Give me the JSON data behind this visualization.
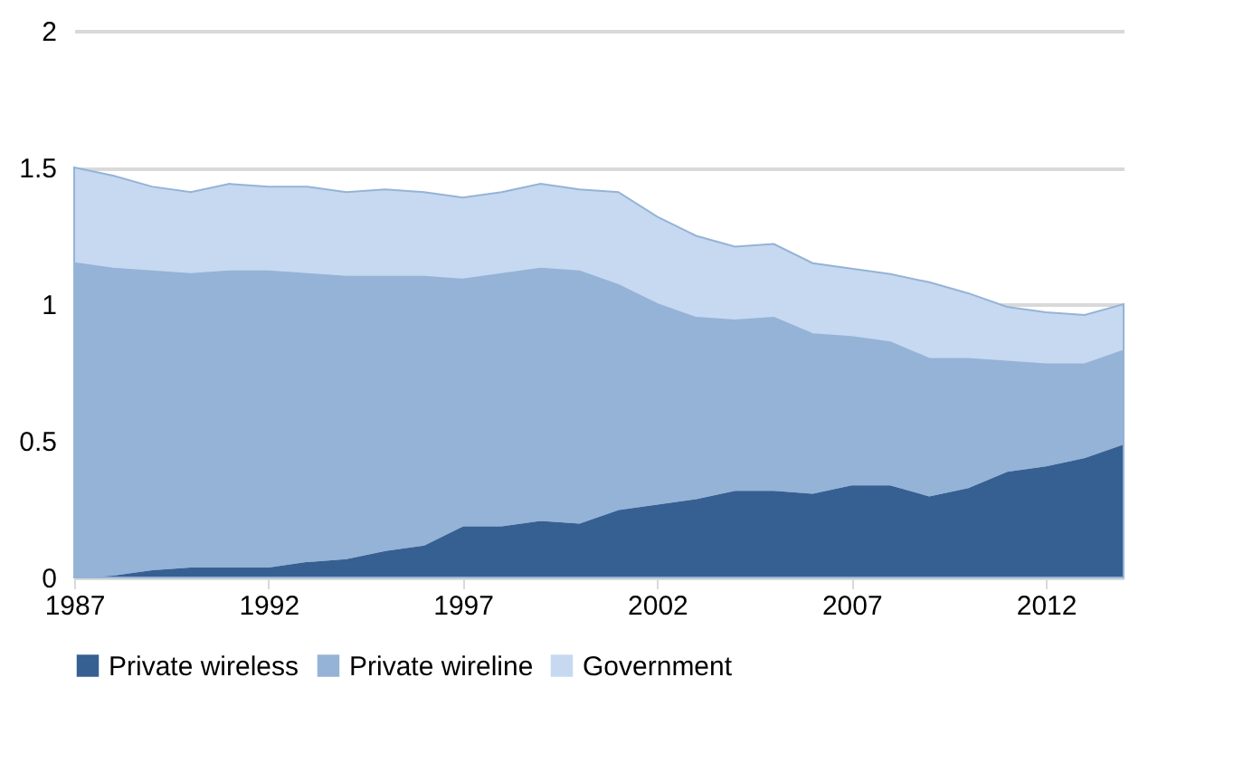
{
  "chart_data": {
    "type": "area",
    "stacked": true,
    "x": [
      1987,
      1988,
      1989,
      1990,
      1991,
      1992,
      1993,
      1994,
      1995,
      1996,
      1997,
      1998,
      1999,
      2000,
      2001,
      2002,
      2003,
      2004,
      2005,
      2006,
      2007,
      2008,
      2009,
      2010,
      2011,
      2012,
      2013,
      2014
    ],
    "series": [
      {
        "name": "Private wireless",
        "color": "#366092",
        "values": [
          0.0,
          0.01,
          0.03,
          0.04,
          0.04,
          0.04,
          0.06,
          0.07,
          0.1,
          0.12,
          0.19,
          0.19,
          0.21,
          0.2,
          0.25,
          0.27,
          0.29,
          0.32,
          0.32,
          0.31,
          0.34,
          0.34,
          0.3,
          0.33,
          0.39,
          0.41,
          0.44,
          0.49
        ]
      },
      {
        "name": "Private wireline",
        "color": "#95b3d7",
        "values": [
          1.15,
          1.12,
          1.09,
          1.07,
          1.08,
          1.08,
          1.05,
          1.03,
          1.0,
          0.98,
          0.9,
          0.92,
          0.92,
          0.92,
          0.82,
          0.73,
          0.66,
          0.62,
          0.63,
          0.58,
          0.54,
          0.52,
          0.5,
          0.47,
          0.4,
          0.37,
          0.34,
          0.34
        ]
      },
      {
        "name": "Government",
        "color": "#c6d9f1",
        "values": [
          0.35,
          0.34,
          0.31,
          0.3,
          0.32,
          0.31,
          0.32,
          0.31,
          0.32,
          0.31,
          0.3,
          0.3,
          0.31,
          0.3,
          0.34,
          0.32,
          0.3,
          0.27,
          0.27,
          0.26,
          0.25,
          0.25,
          0.28,
          0.24,
          0.2,
          0.19,
          0.18,
          0.17
        ]
      }
    ],
    "xlim": [
      1987,
      2014
    ],
    "xticks": [
      1987,
      1992,
      1997,
      2002,
      2007,
      2012
    ],
    "ylim": [
      0,
      2
    ],
    "yticks": [
      0,
      0.5,
      1,
      1.5,
      2
    ],
    "grid": "y",
    "legend": "bottom"
  }
}
